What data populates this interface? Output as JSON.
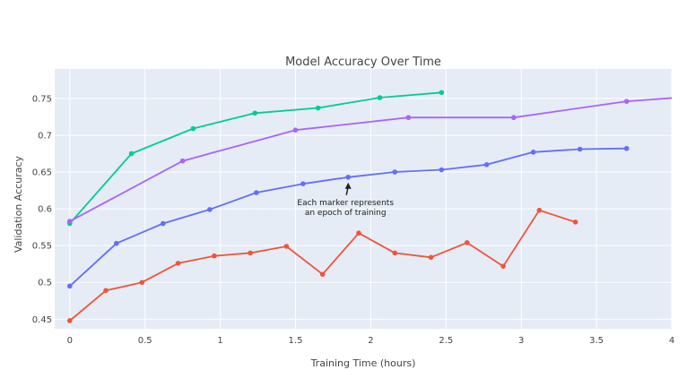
{
  "chart_data": {
    "type": "line",
    "title": "Model Accuracy Over Time",
    "xlabel": "Training Time (hours)",
    "ylabel": "Validation Accuracy",
    "xlim": [
      -0.1,
      4.0
    ],
    "ylim": [
      0.437,
      0.79
    ],
    "xticks": [
      0,
      0.5,
      1,
      1.5,
      2,
      2.5,
      3,
      3.5,
      4
    ],
    "xtick_labels": [
      "0",
      "0.5",
      "1",
      "1.5",
      "2",
      "2.5",
      "3",
      "3.5",
      "4"
    ],
    "yticks": [
      0.45,
      0.5,
      0.55,
      0.6,
      0.65,
      0.7,
      0.75
    ],
    "ytick_labels": [
      "0.45",
      "0.5",
      "0.55",
      "0.6",
      "0.65",
      "0.7",
      "0.75"
    ],
    "grid": true,
    "legend": "none",
    "plot_background": "#E5ECF6",
    "series": [
      {
        "color": "#00CC96",
        "x": [
          0.0,
          0.41,
          0.82,
          1.23,
          1.65,
          2.06,
          2.47
        ],
        "y": [
          0.58,
          0.675,
          0.709,
          0.73,
          0.737,
          0.751,
          0.758
        ]
      },
      {
        "color": "#AB63FA",
        "x": [
          0.0,
          0.75,
          1.5,
          2.25,
          2.95,
          3.7,
          4.1
        ],
        "y": [
          0.583,
          0.665,
          0.707,
          0.724,
          0.724,
          0.746,
          0.752
        ]
      },
      {
        "color": "#636EFA",
        "x": [
          0.0,
          0.31,
          0.62,
          0.93,
          1.24,
          1.55,
          1.85,
          2.16,
          2.47,
          2.77,
          3.08,
          3.39,
          3.7
        ],
        "y": [
          0.495,
          0.553,
          0.58,
          0.599,
          0.622,
          0.634,
          0.643,
          0.65,
          0.653,
          0.66,
          0.677,
          0.681,
          0.682
        ]
      },
      {
        "color": "#EF553B",
        "x": [
          0.0,
          0.24,
          0.48,
          0.72,
          0.96,
          1.2,
          1.44,
          1.68,
          1.92,
          2.16,
          2.4,
          2.64,
          2.88,
          3.12,
          3.36
        ],
        "y": [
          0.448,
          0.489,
          0.5,
          0.526,
          0.536,
          0.54,
          0.549,
          0.511,
          0.567,
          0.54,
          0.534,
          0.554,
          0.522,
          0.598,
          0.582
        ]
      }
    ],
    "annotation": {
      "text_line1": "Each marker represents",
      "text_line2": "an epoch of training",
      "x": 1.85,
      "y": 0.643
    }
  }
}
